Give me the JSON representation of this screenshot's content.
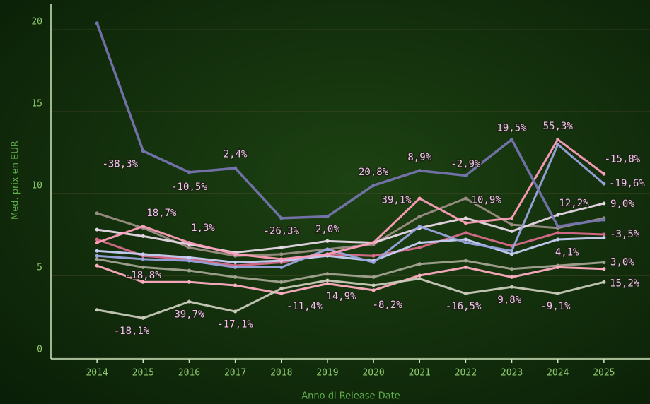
{
  "chart_data": {
    "type": "line",
    "x_label": "Anno di Release Date",
    "y_label": "Med. prix en EUR",
    "xlim": [
      2013,
      2026
    ],
    "ylim": [
      0,
      21.6
    ],
    "xticks": [
      2014,
      2015,
      2016,
      2017,
      2018,
      2019,
      2020,
      2021,
      2022,
      2023,
      2024,
      2025
    ],
    "yticks": [
      0,
      5,
      10,
      15,
      20
    ],
    "grid": true,
    "x": [
      2014,
      2015,
      2016,
      2017,
      2018,
      2019,
      2020,
      2021,
      2022,
      2023,
      2024,
      2025
    ],
    "series": [
      {
        "color": "#9a8e84",
        "values": [
          8.8,
          7.9,
          6.7,
          6.2,
          6.3,
          6.6,
          6.9,
          8.6,
          9.7,
          8.1,
          7.9,
          8.5
        ]
      },
      {
        "color": "#a2a290",
        "values": [
          6.0,
          5.5,
          5.3,
          4.9,
          4.6,
          5.1,
          4.9,
          5.7,
          5.9,
          5.4,
          5.6,
          5.8
        ]
      },
      {
        "color": "#ffadc2",
        "values": [
          5.6,
          4.6,
          4.6,
          4.4,
          3.9,
          4.5,
          4.1,
          5.0,
          5.5,
          4.9,
          5.5,
          5.4
        ]
      },
      {
        "color": "#c9c9b9",
        "values": [
          2.9,
          2.4,
          3.4,
          2.8,
          4.2,
          4.7,
          4.4,
          4.8,
          3.9,
          4.3,
          3.9,
          4.6
        ]
      },
      {
        "color": "#d86a8a",
        "values": [
          7.2,
          6.2,
          6.0,
          5.6,
          5.8,
          6.3,
          6.2,
          6.7,
          7.6,
          6.8,
          7.6,
          7.5
        ]
      },
      {
        "color": "#c8d0f8",
        "values": [
          6.5,
          6.3,
          6.1,
          5.8,
          5.9,
          6.2,
          5.9,
          7.0,
          7.2,
          6.3,
          7.2,
          7.3
        ]
      },
      {
        "color": "#e8d8e8",
        "values": [
          7.8,
          7.4,
          6.9,
          6.4,
          6.7,
          7.1,
          7.0,
          7.9,
          8.5,
          7.7,
          8.7,
          9.4
        ]
      },
      {
        "color": "#9aa4e0",
        "values": [
          6.2,
          6.0,
          5.9,
          5.5,
          5.5,
          6.6,
          5.8,
          8.0,
          7.0,
          6.5,
          13.0,
          10.6
        ]
      },
      {
        "color": "#ff9ebb",
        "values": [
          7.0,
          8.0,
          7.0,
          6.3,
          6.0,
          6.3,
          7.0,
          9.7,
          8.2,
          8.5,
          13.3,
          11.2
        ]
      },
      {
        "color": "#7674b0",
        "values": [
          20.4,
          12.6,
          11.3,
          11.55,
          8.5,
          8.6,
          10.5,
          11.4,
          11.1,
          13.3,
          8.0,
          8.4
        ]
      }
    ],
    "annotations": [
      {
        "text": "-38,3%",
        "x": 2014.5,
        "y": 11.8
      },
      {
        "text": "-10,5%",
        "x": 2016.0,
        "y": 10.4
      },
      {
        "text": "2,4%",
        "x": 2017.0,
        "y": 12.4
      },
      {
        "text": "-26,3%",
        "x": 2018.0,
        "y": 7.7
      },
      {
        "text": "2,0%",
        "x": 2019.0,
        "y": 7.8
      },
      {
        "text": "20,8%",
        "x": 2020.0,
        "y": 11.3
      },
      {
        "text": "8,9%",
        "x": 2021.0,
        "y": 12.2
      },
      {
        "text": "-2,9%",
        "x": 2022.0,
        "y": 11.8
      },
      {
        "text": "19,5%",
        "x": 2023.0,
        "y": 14.0
      },
      {
        "text": "55,3%",
        "x": 2024.0,
        "y": 14.1
      },
      {
        "text": "-15,8%",
        "x": 2025.4,
        "y": 12.1
      },
      {
        "text": "-19,6%",
        "x": 2025.5,
        "y": 10.6
      },
      {
        "text": "18,7%",
        "x": 2015.4,
        "y": 8.8
      },
      {
        "text": "1,3%",
        "x": 2016.3,
        "y": 7.9
      },
      {
        "text": "39,1%",
        "x": 2020.5,
        "y": 9.6
      },
      {
        "text": "10,9%",
        "x": 2022.45,
        "y": 9.6
      },
      {
        "text": "12,2%",
        "x": 2024.35,
        "y": 9.4
      },
      {
        "text": "9,0%",
        "x": 2025.4,
        "y": 9.35
      },
      {
        "text": "-3,5%",
        "x": 2025.45,
        "y": 7.5
      },
      {
        "text": "4,1%",
        "x": 2024.2,
        "y": 6.4
      },
      {
        "text": "3,0%",
        "x": 2025.4,
        "y": 5.8
      },
      {
        "text": "15,2%",
        "x": 2025.45,
        "y": 4.5
      },
      {
        "text": "-18,8%",
        "x": 2015.0,
        "y": 5.0
      },
      {
        "text": "39,7%",
        "x": 2016.0,
        "y": 2.6
      },
      {
        "text": "-18,1%",
        "x": 2014.75,
        "y": 1.6
      },
      {
        "text": "-17,1%",
        "x": 2017.0,
        "y": 2.0
      },
      {
        "text": "-11,4%",
        "x": 2018.5,
        "y": 3.1
      },
      {
        "text": "14,9%",
        "x": 2019.3,
        "y": 3.7
      },
      {
        "text": "-8,2%",
        "x": 2020.3,
        "y": 3.2
      },
      {
        "text": "-16,5%",
        "x": 2021.95,
        "y": 3.1
      },
      {
        "text": "9,8%",
        "x": 2022.95,
        "y": 3.5
      },
      {
        "text": "-9,1%",
        "x": 2023.95,
        "y": 3.1
      }
    ]
  }
}
